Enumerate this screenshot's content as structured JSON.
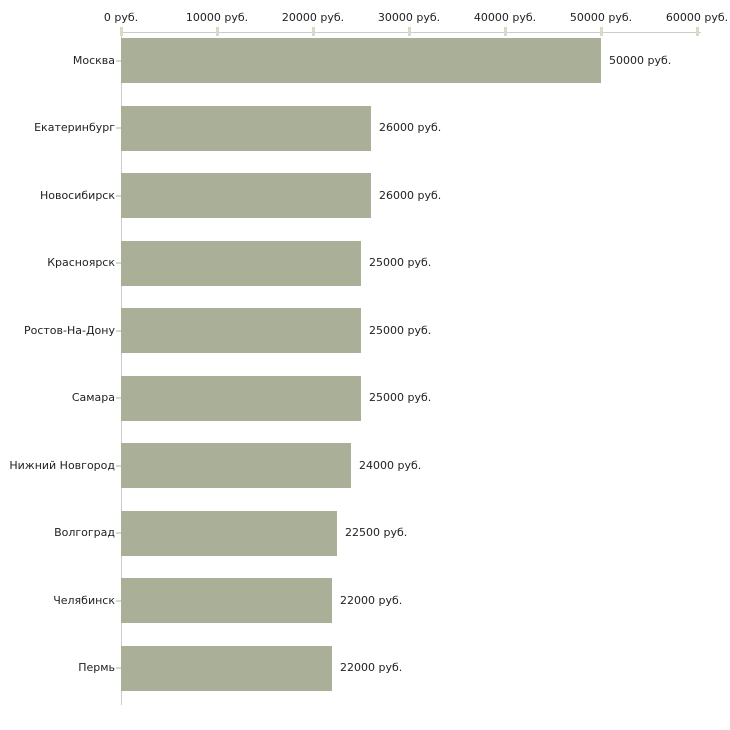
{
  "chart_data": {
    "type": "bar",
    "orientation": "horizontal",
    "title": "",
    "xlabel": "",
    "ylabel": "",
    "categories": [
      "Москва",
      "Екатеринбург",
      "Новосибирск",
      "Красноярск",
      "Ростов-На-Дону",
      "Самара",
      "Нижний Новгород",
      "Волгоград",
      "Челябинск",
      "Пермь"
    ],
    "values": [
      50000,
      26000,
      26000,
      25000,
      25000,
      25000,
      24000,
      22500,
      22000,
      22000
    ],
    "value_labels": [
      "50000 руб.",
      "26000 руб.",
      "26000 руб.",
      "25000 руб.",
      "25000 руб.",
      "25000 руб.",
      "24000 руб.",
      "22500 руб.",
      "22000 руб.",
      "22000 руб."
    ],
    "x_axis": {
      "range": [
        0,
        60000
      ],
      "ticks": [
        0,
        10000,
        20000,
        30000,
        40000,
        50000,
        60000
      ],
      "tick_labels": [
        "0 руб.",
        "10000 руб.",
        "20000 руб.",
        "30000 руб.",
        "40000 руб.",
        "50000 руб.",
        "60000 руб."
      ]
    },
    "grid": false,
    "legend": false,
    "colors": {
      "bar": "#aab097",
      "axis_line": "#cccccc",
      "tick_mark": "#d8dbc4",
      "text": "#222222"
    }
  }
}
